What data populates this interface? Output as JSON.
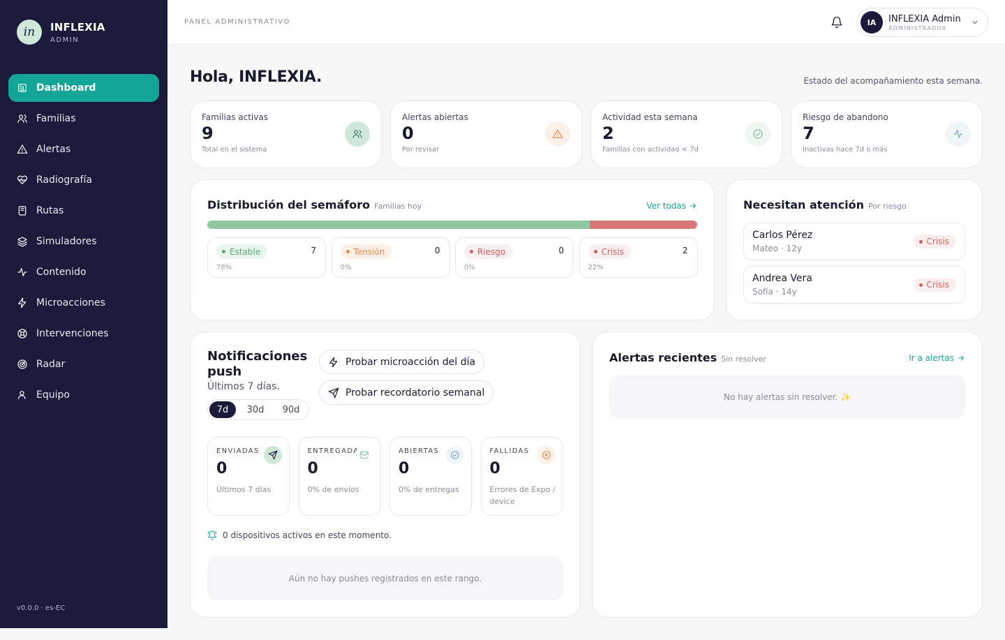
{
  "brand": {
    "logo_text": "in",
    "name": "INFLEXIA",
    "sub": "ADMIN"
  },
  "nav": [
    {
      "label": "Dashboard",
      "icon": "dashboard-icon",
      "active": true
    },
    {
      "label": "Familias",
      "icon": "users-icon"
    },
    {
      "label": "Alertas",
      "icon": "alert-triangle-icon"
    },
    {
      "label": "Radiografía",
      "icon": "heart-pulse-icon"
    },
    {
      "label": "Rutas",
      "icon": "book-icon"
    },
    {
      "label": "Simuladores",
      "icon": "layers-icon"
    },
    {
      "label": "Contenido",
      "icon": "activity-icon"
    },
    {
      "label": "Microacciones",
      "icon": "zap-icon"
    },
    {
      "label": "Intervenciones",
      "icon": "lifebuoy-icon"
    },
    {
      "label": "Radar",
      "icon": "radar-icon"
    },
    {
      "label": "Equipo",
      "icon": "user-icon"
    }
  ],
  "version": "v0.0.0 · es-EC",
  "topbar": {
    "title": "PANEL ADMINISTRATIVO",
    "user": {
      "initials": "IA",
      "name": "INFLEXIA Admin",
      "role": "ADMINISTRADOR"
    }
  },
  "greeting": "Hola, INFLEXIA.",
  "week_status": "Estado del acompañamiento esta semana.",
  "stats": [
    {
      "label": "Familias activas",
      "value": "9",
      "sub": "Total en el sistema",
      "icon": "users-icon",
      "color": "#3f7a5e",
      "bg": "#cfe8da"
    },
    {
      "label": "Alertas abiertas",
      "value": "0",
      "sub": "Por revisar",
      "icon": "alert-triangle-icon",
      "color": "#e0894e",
      "bg": "#fdf0e7"
    },
    {
      "label": "Actividad esta semana",
      "value": "2",
      "sub": "Familias con actividad < 7d",
      "icon": "check-circle-icon",
      "color": "#7fbf9c",
      "bg": "#f0f7f3"
    },
    {
      "label": "Riesgo de abandono",
      "value": "7",
      "sub": "Inactivas hace 7d o más",
      "icon": "activity-icon",
      "color": "#7aa6c2",
      "bg": "#f0f5f8"
    }
  ],
  "semaforo": {
    "title": "Distribución del semáforo",
    "sub": "Familias hoy",
    "link": "Ver todas",
    "levels": [
      {
        "label": "Estable",
        "count": "7",
        "pct": "78%",
        "fraction": 0.78,
        "color": "#8fc8a2",
        "text": "#5ea47a",
        "bg": "#eaf5ee"
      },
      {
        "label": "Tensión",
        "count": "0",
        "pct": "0%",
        "fraction": 0,
        "color": "#f0b27a",
        "text": "#e0894e",
        "bg": "#fdf0e7"
      },
      {
        "label": "Riesgo",
        "count": "0",
        "pct": "0%",
        "fraction": 0,
        "color": "#e07a6a",
        "text": "#d45f5f",
        "bg": "#fbeeee"
      },
      {
        "label": "Crisis",
        "count": "2",
        "pct": "22%",
        "fraction": 0.22,
        "color": "#d97676",
        "text": "#d45f5f",
        "bg": "#fbeeee"
      }
    ]
  },
  "attention": {
    "title": "Necesitan atención",
    "sub": "Por riesgo",
    "items": [
      {
        "name": "Carlos Pérez",
        "meta": "Mateo · 12y",
        "level": "Crisis"
      },
      {
        "name": "Andrea Vera",
        "meta": "Sofía · 14y",
        "level": "Crisis"
      }
    ]
  },
  "push": {
    "title": "Notificaciones push",
    "sub": "Últimos 7 días.",
    "btn_micro": "Probar microacción del día",
    "btn_weekly": "Probar recordatorio semanal",
    "ranges": [
      {
        "label": "7d",
        "active": true
      },
      {
        "label": "30d"
      },
      {
        "label": "90d"
      }
    ],
    "stats": [
      {
        "label": "ENVIADAS",
        "value": "0",
        "sub": "Últimos 7 días",
        "icon": "send-icon",
        "color": "#1c1a3a",
        "bg": "#cfe8da"
      },
      {
        "label": "ENTREGADAS",
        "value": "0",
        "sub": "0% de envíos",
        "icon": "mail-check-icon",
        "color": "#7fbf9c",
        "bg": "#ffffff"
      },
      {
        "label": "ABIERTAS",
        "value": "0",
        "sub": "0% de entregas",
        "icon": "check-circle-icon",
        "color": "#7aa6c2",
        "bg": "#f0f5f8"
      },
      {
        "label": "FALLIDAS",
        "value": "0",
        "sub": "Errores de Expo / device",
        "icon": "x-circle-icon",
        "color": "#e0894e",
        "bg": "#fdf0e7"
      }
    ],
    "devices": "0 dispositivos activos en este momento.",
    "empty": "Aún no hay pushes registrados en este rango."
  },
  "recent": {
    "title": "Alertas recientes",
    "sub": "Sin resolver",
    "link": "Ir a alertas",
    "empty": "No hay alertas sin resolver. ✨"
  }
}
